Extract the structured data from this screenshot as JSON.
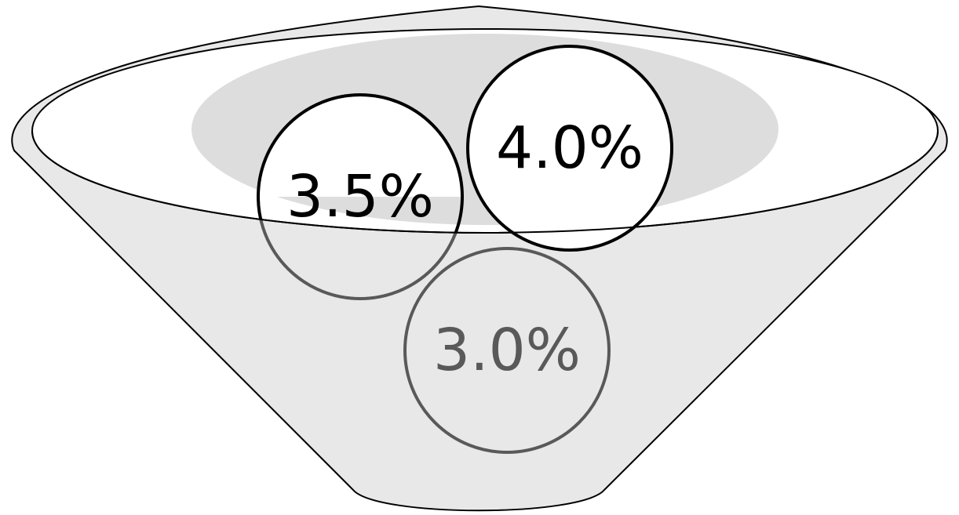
{
  "balls": [
    {
      "label": "3.0%",
      "layer": "inside"
    },
    {
      "label": "3.5%",
      "layer": "front"
    },
    {
      "label": "4.0%",
      "layer": "front"
    }
  ],
  "colors": {
    "bowl_fill": "#e8e8e8",
    "bowl_outline": "#000000",
    "inner_shadow": "#dddddd",
    "front_ball_fill": "#ffffff",
    "front_ball_stroke": "#000000",
    "inside_ball_stroke": "#595959",
    "inside_ball_text": "#595959"
  }
}
